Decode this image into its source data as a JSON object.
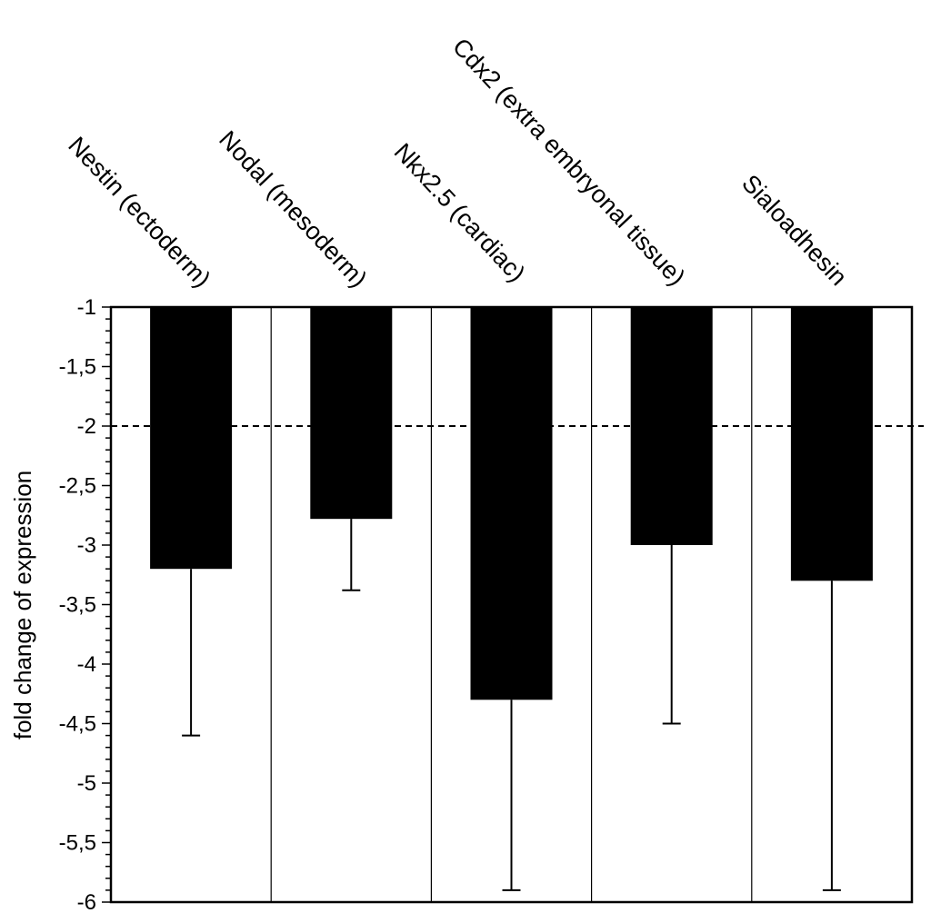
{
  "chart_data": {
    "type": "bar",
    "title": "",
    "xlabel": "",
    "ylabel": "fold change of expression",
    "categories": [
      "Nestin (ectoderm)",
      "Nodal (mesoderm)",
      "Nkx2.5 (cardiac)",
      "Cdx2 (extra embryonal tissue)",
      "Sialoadhesin"
    ],
    "series": [
      {
        "values": [
          -3.2,
          -2.78,
          -4.3,
          -3.0,
          -3.3
        ],
        "error_lower": [
          -4.6,
          -3.38,
          -5.9,
          -4.5,
          -5.9
        ]
      }
    ],
    "ylim": [
      -6,
      -1
    ],
    "yticks": [
      "-1",
      "-1,5",
      "-2",
      "-2,5",
      "-3",
      "-3,5",
      "-4",
      "-4,5",
      "-5",
      "-5,5",
      "-6"
    ],
    "ytick_values": [
      -1,
      -1.5,
      -2,
      -2.5,
      -3,
      -3.5,
      -4,
      -4.5,
      -5,
      -5.5,
      -6
    ],
    "reference_line": -2,
    "bar_color": "#000000",
    "grid": false,
    "category_separators": true
  }
}
